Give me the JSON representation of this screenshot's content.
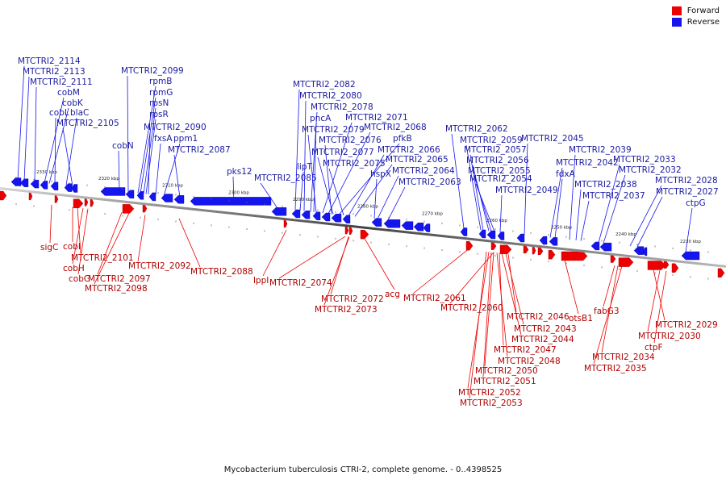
{
  "legend": {
    "forward": {
      "label": "Forward",
      "color": "#ee0000"
    },
    "reverse": {
      "label": "Reverse",
      "color": "#1515ee"
    }
  },
  "caption": "Mycobacterium tuberculosis CTRI-2, complete genome. - 0..4398525",
  "scale_ticks": [
    "2330 kbp",
    "2320 kbp",
    "2310 kbp",
    "2300 kbp",
    "2290 kbp",
    "2280 kbp",
    "2270 kbp",
    "2260 kbp",
    "2250 kbp",
    "2240 kbp",
    "2230 kbp"
  ],
  "reverse_genes": [
    "MTCTRI2_2114",
    "MTCTRI2_2113",
    "MTCTRI2_2111",
    "cobM",
    "cobK",
    "cobL",
    "blaC",
    "MTCTRI2_2105",
    "cobN",
    "MTCTRI2_2099",
    "rpmB",
    "rpmG",
    "rpsN",
    "rpsR",
    "MTCTRI2_2090",
    "fxsA",
    "ppm1",
    "MTCTRI2_2087",
    "pks12",
    "MTCTRI2_2085",
    "MTCTRI2_2082",
    "MTCTRI2_2080",
    "MTCTRI2_2078",
    "pncA",
    "MTCTRI2_2079",
    "MTCTRI2_2071",
    "MTCTRI2_2068",
    "MTCTRI2_2076",
    "MTCTRI2_2077",
    "pfkB",
    "lipT",
    "MTCTRI2_2075",
    "MTCTRI2_2066",
    "MTCTRI2_2065",
    "hspX",
    "MTCTRI2_2064",
    "MTCTRI2_2063",
    "MTCTRI2_2062",
    "MTCTRI2_2059",
    "MTCTRI2_2057",
    "MTCTRI2_2056",
    "MTCTRI2_2055",
    "MTCTRI2_2054",
    "MTCTRI2_2049",
    "MTCTRI2_2045",
    "MTCTRI2_2042",
    "fdxA",
    "MTCTRI2_2039",
    "MTCTRI2_2038",
    "MTCTRI2_2037",
    "MTCTRI2_2033",
    "MTCTRI2_2032",
    "MTCTRI2_2028",
    "MTCTRI2_2027",
    "ctpG"
  ],
  "forward_genes": [
    "sigC",
    "cobI",
    "MTCTRI2_2101",
    "cobH",
    "cobG",
    "MTCTRI2_2097",
    "MTCTRI2_2098",
    "MTCTRI2_2092",
    "MTCTRI2_2088",
    "lppI",
    "MTCTRI2_2074",
    "MTCTRI2_2072",
    "MTCTRI2_2073",
    "acg",
    "MTCTRI2_2061",
    "MTCTRI2_2060",
    "otsB1",
    "fabG3",
    "MTCTRI2_2046",
    "MTCTRI2_2043",
    "MTCTRI2_2044",
    "MTCTRI2_2047",
    "MTCTRI2_2048",
    "MTCTRI2_2050",
    "MTCTRI2_2051",
    "MTCTRI2_2052",
    "MTCTRI2_2053",
    "MTCTRI2_2029",
    "MTCTRI2_2030",
    "ctpF",
    "MTCTRI2_2034",
    "MTCTRI2_2035"
  ]
}
